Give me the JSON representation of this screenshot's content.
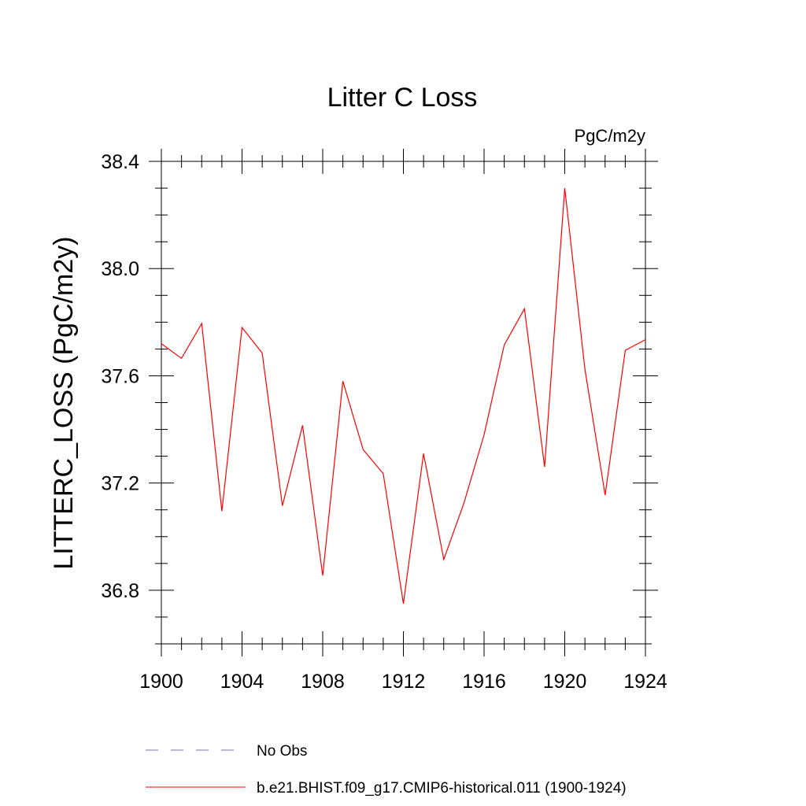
{
  "chart_data": {
    "type": "line",
    "title": "Litter C Loss",
    "units": "PgC/m2y",
    "xlabel": "",
    "ylabel": "LITTERC_LOSS  (PgC/m2y)",
    "xlim": [
      1900,
      1924
    ],
    "ylim": [
      36.6,
      38.4
    ],
    "xticks": [
      "1900",
      "1904",
      "1908",
      "1912",
      "1916",
      "1920",
      "1924"
    ],
    "yticks": [
      "36.8",
      "37.2",
      "37.6",
      "38.0",
      "38.4"
    ],
    "grid": false,
    "legend_position": "bottom",
    "x": [
      1900,
      1901,
      1902,
      1903,
      1904,
      1905,
      1906,
      1907,
      1908,
      1909,
      1910,
      1911,
      1912,
      1913,
      1914,
      1915,
      1916,
      1917,
      1918,
      1919,
      1920,
      1921,
      1922,
      1923,
      1924
    ],
    "series": [
      {
        "name": "b.e21.BHIST.f09_g17.CMIP6-historical.011 (1900-1924)",
        "color": "#ff0000",
        "style": "solid",
        "values": [
          37.72,
          37.665,
          37.795,
          37.095,
          37.78,
          37.685,
          37.115,
          37.415,
          36.855,
          37.58,
          37.325,
          37.235,
          36.75,
          37.31,
          36.915,
          37.125,
          37.38,
          37.715,
          37.85,
          37.26,
          38.3,
          37.625,
          37.155,
          37.695,
          37.735
        ]
      }
    ],
    "legend": [
      {
        "label": "No Obs",
        "color": "#7b6fb8",
        "style": "dashed"
      },
      {
        "label": "b.e21.BHIST.f09_g17.CMIP6-historical.011 (1900-1924)",
        "color": "#ff0000",
        "style": "solid"
      }
    ]
  }
}
